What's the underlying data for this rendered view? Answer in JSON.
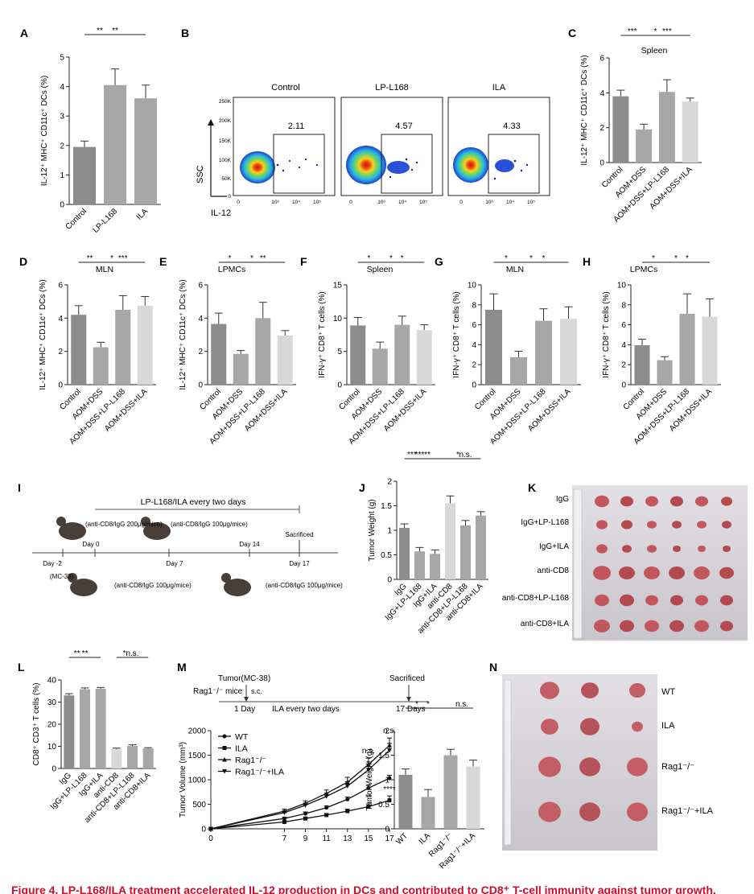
{
  "colors": {
    "dark": "#8c8c8c",
    "mid": "#a7a7a7",
    "light": "#d8d8d8",
    "caption": "#c8102e"
  },
  "caption": "Figure 4. LP-L168/ILA treatment accelerated IL-12 production in DCs and contributed to CD8⁺ T-cell immunity against tumor growth.",
  "flow": {
    "panel_label": "B",
    "samples": [
      {
        "name": "Control",
        "percent": "2.11"
      },
      {
        "name": "LP-L168",
        "percent": "4.57"
      },
      {
        "name": "ILA",
        "percent": "4.33"
      }
    ],
    "y_axis": "SSC",
    "x_axis": "IL-12",
    "y_ticks": [
      "250K",
      "200K",
      "150K",
      "100K",
      "50K",
      "0"
    ],
    "x_ticks": [
      "0",
      "10³",
      "10⁴",
      "10⁵"
    ]
  },
  "schematic_I": {
    "panel_label": "I",
    "treatment": "LP-L168/ILA every two days",
    "day_labels": [
      "Day -2",
      "Day 0",
      "Day 7",
      "Day 14",
      "Day 17"
    ],
    "sacrificed": "Sacrificed",
    "mc38": "(MC-38)",
    "injections": [
      "(anti-CD8/IgG 200μg/mice)",
      "(anti-CD8/IgG 100μg/mice)",
      "(anti-CD8/IgG 100μg/mice)",
      "(anti-CD8/IgG 100μg/mice)"
    ]
  },
  "schematic_M": {
    "tumor": "Tumor(MC-38)",
    "mice": "Rag1⁻/⁻ mice",
    "sc": "s.c.",
    "day1": "1 Day",
    "ila": "ILA every two days",
    "day17": "17 Days",
    "sacrificed": "Sacrificed"
  },
  "photo_K": {
    "panel_label": "K",
    "rows": [
      "IgG",
      "IgG+LP-L168",
      "IgG+ILA",
      "anti-CD8",
      "anti-CD8+LP-L168",
      "anti-CD8+ILA"
    ]
  },
  "photo_N": {
    "panel_label": "N",
    "rows": [
      "WT",
      "ILA",
      "Rag1⁻/⁻",
      "Rag1⁻/⁻+ILA"
    ]
  },
  "chart_data": [
    {
      "id": "A",
      "type": "bar",
      "panel_label": "A",
      "title": "",
      "ylabel": "IL-12⁺ MHC⁺ CD11c⁺ DCs (%)",
      "categories": [
        "Control",
        "LP-L168",
        "ILA"
      ],
      "values": [
        1.95,
        4.05,
        3.6
      ],
      "errors": [
        0.2,
        0.55,
        0.45
      ],
      "colors": [
        "dark",
        "mid",
        "mid"
      ],
      "ylim": [
        0,
        5
      ],
      "yticks": [
        0,
        1,
        2,
        3,
        4,
        5
      ],
      "sig": [
        {
          "a": 0,
          "b": 1,
          "label": "**"
        },
        {
          "a": 0,
          "b": 2,
          "label": "**"
        }
      ]
    },
    {
      "id": "C",
      "type": "bar",
      "panel_label": "C",
      "title": "Spleen",
      "ylabel": "IL-12⁺ MHC⁺ CD11c⁺ DCs (%)",
      "categories": [
        "Control",
        "AOM+DSS",
        "AOM+DSS+LP-L168",
        "AOM+DSS+ILA"
      ],
      "values": [
        3.8,
        1.9,
        4.05,
        3.5
      ],
      "errors": [
        0.35,
        0.3,
        0.7,
        0.2
      ],
      "colors": [
        "dark",
        "mid",
        "mid",
        "light"
      ],
      "ylim": [
        0,
        6
      ],
      "yticks": [
        0,
        2,
        4,
        6
      ],
      "sig": [
        {
          "a": 0,
          "b": 1,
          "label": "***"
        },
        {
          "a": 1,
          "b": 2,
          "label": "*"
        },
        {
          "a": 1,
          "b": 3,
          "label": "***"
        }
      ]
    },
    {
      "id": "D",
      "type": "bar",
      "panel_label": "D",
      "title": "MLN",
      "ylabel": "IL-12⁺ MHC⁺ CD11c⁺ DCs (%)",
      "categories": [
        "Control",
        "AOM+DSS",
        "AOM+DSS+LP-L168",
        "AOM+DSS+ILA"
      ],
      "values": [
        4.2,
        2.25,
        4.5,
        4.75
      ],
      "errors": [
        0.55,
        0.3,
        0.85,
        0.55
      ],
      "colors": [
        "dark",
        "mid",
        "mid",
        "light"
      ],
      "ylim": [
        0,
        6
      ],
      "yticks": [
        0,
        2,
        4,
        6
      ],
      "sig": [
        {
          "a": 0,
          "b": 1,
          "label": "**"
        },
        {
          "a": 1,
          "b": 2,
          "label": "*"
        },
        {
          "a": 1,
          "b": 3,
          "label": "***"
        }
      ]
    },
    {
      "id": "E",
      "type": "bar",
      "panel_label": "E",
      "title": "LPMCs",
      "ylabel": "IL-12⁺ MHC⁺ CD11c⁺ DCs (%)",
      "categories": [
        "Control",
        "AOM+DSS",
        "AOM+DSS+LP-L168",
        "AOM+DSS+ILA"
      ],
      "values": [
        3.65,
        1.85,
        4.0,
        2.95
      ],
      "errors": [
        0.65,
        0.2,
        0.95,
        0.3
      ],
      "colors": [
        "dark",
        "mid",
        "mid",
        "light"
      ],
      "ylim": [
        0,
        6
      ],
      "yticks": [
        0,
        2,
        4,
        6
      ],
      "sig": [
        {
          "a": 0,
          "b": 1,
          "label": "*"
        },
        {
          "a": 1,
          "b": 2,
          "label": "*"
        },
        {
          "a": 1,
          "b": 3,
          "label": "**"
        }
      ]
    },
    {
      "id": "F",
      "type": "bar",
      "panel_label": "F",
      "title": "Spleen",
      "ylabel": "IFN-γ⁺ CD8⁺ T cells (%)",
      "categories": [
        "Control",
        "AOM+DSS",
        "AOM+DSS+LP-L168",
        "AOM+DSS+ILA"
      ],
      "values": [
        8.9,
        5.4,
        9.0,
        8.2
      ],
      "errors": [
        1.2,
        1.0,
        1.3,
        0.8
      ],
      "colors": [
        "dark",
        "mid",
        "mid",
        "light"
      ],
      "ylim": [
        0,
        15
      ],
      "yticks": [
        0,
        5,
        10,
        15
      ],
      "sig": [
        {
          "a": 0,
          "b": 1,
          "label": "*"
        },
        {
          "a": 1,
          "b": 2,
          "label": "*"
        },
        {
          "a": 1,
          "b": 3,
          "label": "*"
        }
      ]
    },
    {
      "id": "G",
      "type": "bar",
      "panel_label": "G",
      "title": "MLN",
      "ylabel": "IFN-γ⁺ CD8⁺ T cells (%)",
      "categories": [
        "Control",
        "AOM+DSS",
        "AOM+DSS+LP-L168",
        "AOM+DSS+ILA"
      ],
      "values": [
        7.5,
        2.75,
        6.4,
        6.6
      ],
      "errors": [
        1.6,
        0.6,
        1.2,
        1.2
      ],
      "colors": [
        "dark",
        "mid",
        "mid",
        "light"
      ],
      "ylim": [
        0,
        10
      ],
      "yticks": [
        0,
        2,
        4,
        6,
        8,
        10
      ],
      "sig": [
        {
          "a": 0,
          "b": 1,
          "label": "*"
        },
        {
          "a": 1,
          "b": 2,
          "label": "*"
        },
        {
          "a": 1,
          "b": 3,
          "label": "*"
        }
      ]
    },
    {
      "id": "H",
      "type": "bar",
      "panel_label": "H",
      "title": "LPMCs",
      "ylabel": "IFN-γ⁺ CD8⁺ T cells (%)",
      "categories": [
        "Control",
        "AOM+DSS",
        "AOM+DSS+LP-L168",
        "AOM+DSS+ILA"
      ],
      "values": [
        3.95,
        2.45,
        7.1,
        6.8
      ],
      "errors": [
        0.6,
        0.35,
        2.0,
        1.8
      ],
      "colors": [
        "dark",
        "mid",
        "mid",
        "light"
      ],
      "ylim": [
        0,
        10
      ],
      "yticks": [
        0,
        2,
        4,
        6,
        8,
        10
      ],
      "sig": [
        {
          "a": 0,
          "b": 1,
          "label": "*"
        },
        {
          "a": 1,
          "b": 2,
          "label": "*"
        },
        {
          "a": 1,
          "b": 3,
          "label": "*"
        }
      ]
    },
    {
      "id": "J",
      "type": "bar",
      "panel_label": "J",
      "title": "",
      "ylabel": "Tumor Weight (g)",
      "categories": [
        "IgG",
        "IgG+LP-L168",
        "IgG+ILA",
        "anti-CD8",
        "anti-CD8+LP-L168",
        "anti-CD8+ILA"
      ],
      "values": [
        1.05,
        0.57,
        0.52,
        1.55,
        1.1,
        1.3
      ],
      "errors": [
        0.08,
        0.08,
        0.08,
        0.15,
        0.1,
        0.08
      ],
      "colors": [
        "dark",
        "mid",
        "mid",
        "light",
        "mid",
        "mid"
      ],
      "ylim": [
        0,
        2.0
      ],
      "yticks": [
        0,
        0.5,
        1.0,
        1.5,
        2.0
      ],
      "sig": [
        {
          "a": 0,
          "b": 1,
          "label": "***"
        },
        {
          "a": 0,
          "b": 2,
          "label": "***"
        },
        {
          "a": 0,
          "b": 3,
          "label": "**"
        },
        {
          "a": 3,
          "b": 4,
          "label": "*"
        },
        {
          "a": 3,
          "b": 5,
          "label": "n.s."
        }
      ]
    },
    {
      "id": "L",
      "type": "bar",
      "panel_label": "L",
      "title": "",
      "ylabel": "CD8⁺ CD3⁺ T cells (%)",
      "categories": [
        "IgG",
        "IgG+LP-L168",
        "IgG+ILA",
        "anti-CD8",
        "anti-CD8+LP-L168",
        "anti-CD8+ILA"
      ],
      "values": [
        33,
        35.8,
        36,
        8.8,
        10.2,
        9
      ],
      "errors": [
        0.8,
        0.6,
        0.6,
        0.4,
        0.5,
        0.4
      ],
      "colors": [
        "dark",
        "mid",
        "mid",
        "light",
        "mid",
        "mid"
      ],
      "ylim": [
        0,
        40
      ],
      "yticks": [
        0,
        10,
        20,
        30,
        40
      ],
      "sig": [
        {
          "a": 0,
          "b": 1,
          "label": "**"
        },
        {
          "a": 0,
          "b": 2,
          "label": "**"
        },
        {
          "a": 3,
          "b": 4,
          "label": "*"
        },
        {
          "a": 3,
          "b": 5,
          "label": "n.s."
        }
      ]
    },
    {
      "id": "M",
      "type": "line",
      "panel_label": "M",
      "title": "",
      "xlabel": "",
      "ylabel": "Tumor Volume (mm³)",
      "x": [
        0,
        7,
        9,
        11,
        13,
        15,
        17
      ],
      "xlim": [
        0,
        17
      ],
      "ylim": [
        0,
        2000
      ],
      "yticks": [
        0,
        500,
        1000,
        1500,
        2000
      ],
      "series": [
        {
          "name": "WT",
          "marker": "circle",
          "values": [
            0,
            210,
            310,
            430,
            600,
            830,
            1030
          ],
          "errors": [
            0,
            25,
            35,
            40,
            50,
            55,
            60
          ]
        },
        {
          "name": "ILA",
          "marker": "square",
          "values": [
            0,
            140,
            210,
            280,
            360,
            450,
            580
          ],
          "errors": [
            0,
            20,
            25,
            30,
            40,
            60,
            90
          ]
        },
        {
          "name": "Rag1⁻/⁻",
          "marker": "triangle-up",
          "values": [
            0,
            360,
            520,
            720,
            950,
            1310,
            1700
          ],
          "errors": [
            0,
            40,
            50,
            70,
            100,
            130,
            150
          ]
        },
        {
          "name": "Rag1⁻/⁻+ILA",
          "marker": "triangle-down",
          "values": [
            0,
            330,
            480,
            660,
            870,
            1200,
            1600
          ],
          "errors": [
            0,
            35,
            45,
            65,
            90,
            120,
            140
          ]
        }
      ],
      "annotations": [
        {
          "x": 15,
          "label": "n.s."
        },
        {
          "x": 17,
          "label": "n.s."
        },
        {
          "x": 15,
          "label": "**"
        },
        {
          "x": 17,
          "label": "****"
        }
      ]
    },
    {
      "id": "M2",
      "type": "bar",
      "panel_label": "",
      "title": "",
      "ylabel": "Tumor Weight (g)",
      "categories": [
        "WT",
        "ILA",
        "Rag1⁻/⁻",
        "Rag1⁻/⁻+ILA"
      ],
      "values": [
        1.1,
        0.65,
        1.5,
        1.27
      ],
      "errors": [
        0.12,
        0.15,
        0.12,
        0.13
      ],
      "colors": [
        "dark",
        "mid",
        "mid",
        "light"
      ],
      "ylim": [
        0,
        2.0
      ],
      "yticks": [
        0,
        0.5,
        1.0,
        1.5,
        2.0
      ],
      "sig": [
        {
          "a": 0,
          "b": 1,
          "label": "*"
        },
        {
          "a": 0,
          "b": 2,
          "label": "*"
        },
        {
          "a": 2,
          "b": 3,
          "label": "n.s."
        }
      ]
    }
  ]
}
